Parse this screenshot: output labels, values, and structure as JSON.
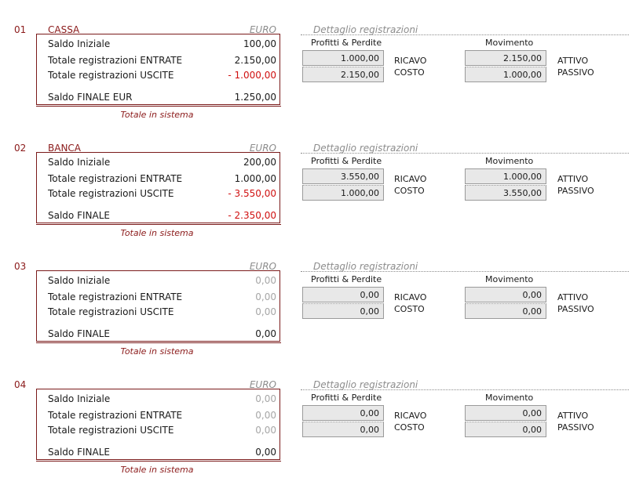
{
  "common": {
    "euro": "EURO",
    "dettaglio": "Dettaglio registrazioni",
    "profitti_header": "Profitti & Perdite",
    "movimento_header": "Movimento",
    "ricavo": "RICAVO",
    "costo": "COSTO",
    "attivo": "ATTIVO",
    "passivo": "PASSIVO",
    "totale_sistema": "Totale in sistema",
    "label_saldo_iniziale": "Saldo Iniziale",
    "label_entrate": "Totale registrazioni ENTRATE",
    "label_uscite": "Totale registrazioni USCITE"
  },
  "accounts": [
    {
      "num": "01",
      "name": "CASSA",
      "saldo_iniziale": "100,00",
      "entrate": "2.150,00",
      "uscite": "- 1.000,00",
      "saldo_finale_label": "Saldo FINALE EUR",
      "saldo_finale": "1.250,00",
      "pl_ricavo": "1.000,00",
      "pl_costo": "2.150,00",
      "mov_attivo": "2.150,00",
      "mov_passivo": "1.000,00"
    },
    {
      "num": "02",
      "name": "BANCA",
      "saldo_iniziale": "200,00",
      "entrate": "1.000,00",
      "uscite": "- 3.550,00",
      "saldo_finale_label": "Saldo FINALE",
      "saldo_finale": "- 2.350,00",
      "pl_ricavo": "3.550,00",
      "pl_costo": "1.000,00",
      "mov_attivo": "1.000,00",
      "mov_passivo": "3.550,00"
    },
    {
      "num": "03",
      "name": "",
      "saldo_iniziale": "0,00",
      "entrate": "0,00",
      "uscite": "0,00",
      "saldo_finale_label": "Saldo FINALE",
      "saldo_finale": "0,00",
      "pl_ricavo": "0,00",
      "pl_costo": "0,00",
      "mov_attivo": "0,00",
      "mov_passivo": "0,00"
    },
    {
      "num": "04",
      "name": "",
      "saldo_iniziale": "0,00",
      "entrate": "0,00",
      "uscite": "0,00",
      "saldo_finale_label": "Saldo FINALE",
      "saldo_finale": "0,00",
      "pl_ricavo": "0,00",
      "pl_costo": "0,00",
      "mov_attivo": "0,00",
      "mov_passivo": "0,00"
    }
  ]
}
